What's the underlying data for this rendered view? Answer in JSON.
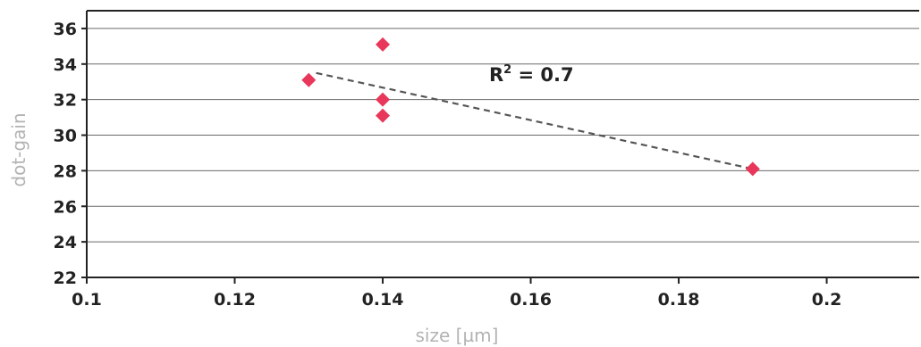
{
  "chart_data": {
    "type": "scatter",
    "xlabel": "size [µm]",
    "ylabel": "dot-gain",
    "xlim": [
      0.1,
      0.2125
    ],
    "ylim": [
      22,
      37
    ],
    "x_ticks": [
      "0.1",
      "0.12",
      "0.14",
      "0.16",
      "0.18",
      "0.2"
    ],
    "y_ticks": [
      "22",
      "24",
      "26",
      "28",
      "30",
      "32",
      "34",
      "36"
    ],
    "grid": "horizontal",
    "series": [
      {
        "marker": "diamond",
        "color": "#e8375a",
        "points": [
          {
            "x": 0.13,
            "y": 33.1
          },
          {
            "x": 0.14,
            "y": 35.1
          },
          {
            "x": 0.14,
            "y": 32.0
          },
          {
            "x": 0.14,
            "y": 31.1
          },
          {
            "x": 0.19,
            "y": 28.1
          }
        ]
      }
    ],
    "trendline": {
      "style": "dashed",
      "color": "#555555",
      "x_start": 0.131,
      "y_start": 33.5,
      "x_end": 0.19,
      "y_end": 28.1
    },
    "annotation": {
      "label": "R",
      "superscript": "2",
      "suffix": " = 0.7"
    }
  }
}
